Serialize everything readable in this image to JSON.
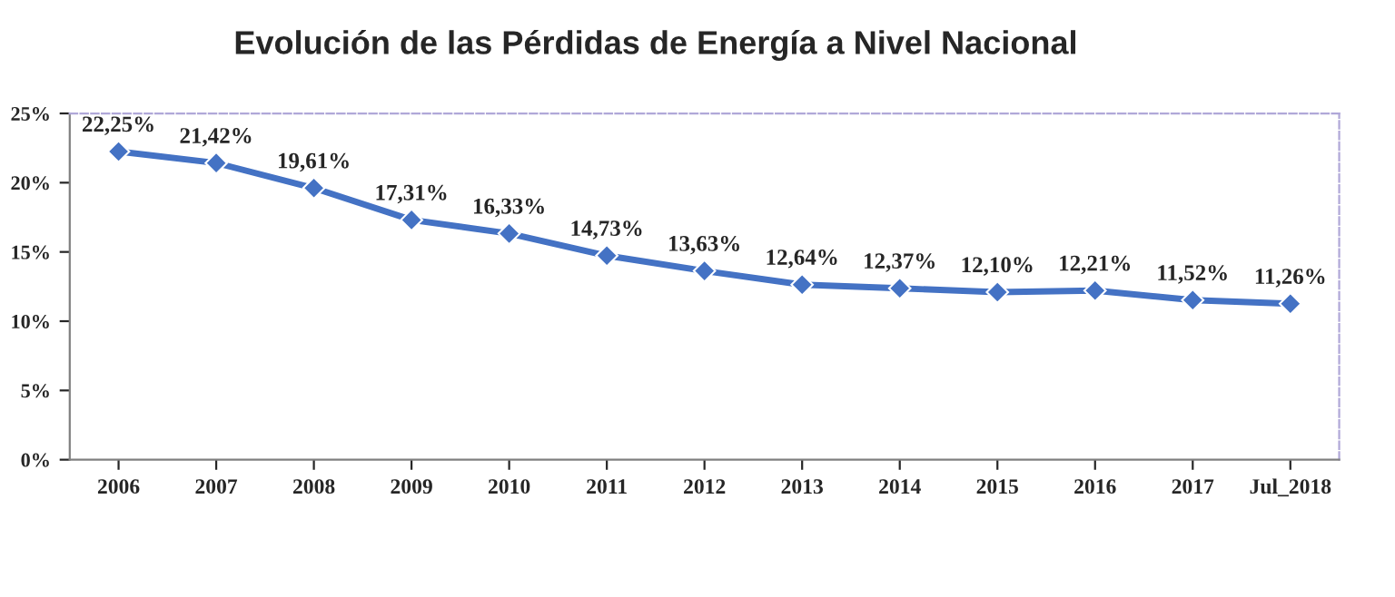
{
  "chart_data": {
    "type": "line",
    "title": "Evolución de las Pérdidas de Energía a Nivel Nacional",
    "categories": [
      "2006",
      "2007",
      "2008",
      "2009",
      "2010",
      "2011",
      "2012",
      "2013",
      "2014",
      "2015",
      "2016",
      "2017",
      "Jul_2018"
    ],
    "series": [
      {
        "color": "#4472c4",
        "values": [
          22.25,
          21.42,
          19.61,
          17.31,
          16.33,
          14.73,
          13.63,
          12.64,
          12.37,
          12.1,
          12.21,
          11.52,
          11.26
        ],
        "value_labels": [
          "22,25%",
          "21,42%",
          "19,61%",
          "17,31%",
          "16,33%",
          "14,73%",
          "13,63%",
          "12,64%",
          "12,37%",
          "12,10%",
          "12,21%",
          "11,52%",
          "11,26%"
        ]
      }
    ],
    "ylim": [
      0,
      25
    ],
    "yticks": [
      {
        "value": 0,
        "label": "0%"
      },
      {
        "value": 5,
        "label": "5%"
      },
      {
        "value": 10,
        "label": "10%"
      },
      {
        "value": 15,
        "label": "15%"
      },
      {
        "value": 20,
        "label": "20%"
      },
      {
        "value": 25,
        "label": "25%"
      }
    ],
    "marker": "diamond",
    "line_style": "solid",
    "grid": false
  }
}
